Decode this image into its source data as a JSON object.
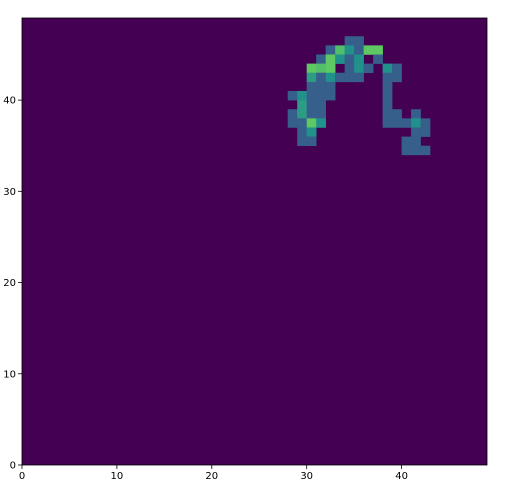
{
  "chart_data": {
    "type": "heatmap",
    "title": "",
    "xlabel": "",
    "ylabel": "",
    "grid_size": [
      49,
      49
    ],
    "xlim": [
      0,
      49
    ],
    "ylim": [
      0,
      49
    ],
    "origin": "lower",
    "x_ticks": [
      0,
      10,
      20,
      30,
      40
    ],
    "y_ticks": [
      0,
      10,
      20,
      30,
      40
    ],
    "grid": false,
    "colormap": "viridis",
    "background_value": 0,
    "value_range": [
      0,
      1
    ],
    "colors": {
      "low": "#440154",
      "mid_low": "#3b528b",
      "mid": "#21918c",
      "high": "#5ec962"
    },
    "cells": [
      {
        "x": 34,
        "y": 46,
        "v": 0.3
      },
      {
        "x": 35,
        "y": 46,
        "v": 0.3
      },
      {
        "x": 32,
        "y": 45,
        "v": 0.3
      },
      {
        "x": 33,
        "y": 45,
        "v": 0.7
      },
      {
        "x": 34,
        "y": 45,
        "v": 0.5
      },
      {
        "x": 35,
        "y": 45,
        "v": 0.3
      },
      {
        "x": 36,
        "y": 45,
        "v": 0.75
      },
      {
        "x": 37,
        "y": 45,
        "v": 0.75
      },
      {
        "x": 31,
        "y": 44,
        "v": 0.3
      },
      {
        "x": 32,
        "y": 44,
        "v": 0.75
      },
      {
        "x": 33,
        "y": 44,
        "v": 0.5
      },
      {
        "x": 34,
        "y": 44,
        "v": 0.3
      },
      {
        "x": 35,
        "y": 44,
        "v": 0.5
      },
      {
        "x": 37,
        "y": 44,
        "v": 0.3
      },
      {
        "x": 30,
        "y": 43,
        "v": 0.75
      },
      {
        "x": 31,
        "y": 43,
        "v": 0.7
      },
      {
        "x": 32,
        "y": 43,
        "v": 0.75
      },
      {
        "x": 34,
        "y": 43,
        "v": 0.3
      },
      {
        "x": 35,
        "y": 43,
        "v": 0.5
      },
      {
        "x": 36,
        "y": 43,
        "v": 0.3
      },
      {
        "x": 38,
        "y": 43,
        "v": 0.5
      },
      {
        "x": 39,
        "y": 43,
        "v": 0.3
      },
      {
        "x": 30,
        "y": 42,
        "v": 0.55
      },
      {
        "x": 31,
        "y": 42,
        "v": 0.3
      },
      {
        "x": 32,
        "y": 42,
        "v": 0.5
      },
      {
        "x": 33,
        "y": 42,
        "v": 0.3
      },
      {
        "x": 34,
        "y": 42,
        "v": 0.3
      },
      {
        "x": 35,
        "y": 42,
        "v": 0.3
      },
      {
        "x": 38,
        "y": 42,
        "v": 0.3
      },
      {
        "x": 39,
        "y": 42,
        "v": 0.3
      },
      {
        "x": 30,
        "y": 41,
        "v": 0.3
      },
      {
        "x": 31,
        "y": 41,
        "v": 0.3
      },
      {
        "x": 32,
        "y": 41,
        "v": 0.3
      },
      {
        "x": 38,
        "y": 41,
        "v": 0.3
      },
      {
        "x": 28,
        "y": 40,
        "v": 0.3
      },
      {
        "x": 29,
        "y": 40,
        "v": 0.5
      },
      {
        "x": 30,
        "y": 40,
        "v": 0.3
      },
      {
        "x": 31,
        "y": 40,
        "v": 0.3
      },
      {
        "x": 32,
        "y": 40,
        "v": 0.3
      },
      {
        "x": 38,
        "y": 40,
        "v": 0.3
      },
      {
        "x": 29,
        "y": 39,
        "v": 0.55
      },
      {
        "x": 30,
        "y": 39,
        "v": 0.3
      },
      {
        "x": 31,
        "y": 39,
        "v": 0.3
      },
      {
        "x": 38,
        "y": 39,
        "v": 0.3
      },
      {
        "x": 28,
        "y": 38,
        "v": 0.3
      },
      {
        "x": 29,
        "y": 38,
        "v": 0.55
      },
      {
        "x": 30,
        "y": 38,
        "v": 0.3
      },
      {
        "x": 31,
        "y": 38,
        "v": 0.3
      },
      {
        "x": 38,
        "y": 38,
        "v": 0.3
      },
      {
        "x": 39,
        "y": 38,
        "v": 0.3
      },
      {
        "x": 41,
        "y": 38,
        "v": 0.3
      },
      {
        "x": 28,
        "y": 37,
        "v": 0.3
      },
      {
        "x": 29,
        "y": 37,
        "v": 0.3
      },
      {
        "x": 30,
        "y": 37,
        "v": 0.75
      },
      {
        "x": 31,
        "y": 37,
        "v": 0.5
      },
      {
        "x": 38,
        "y": 37,
        "v": 0.3
      },
      {
        "x": 39,
        "y": 37,
        "v": 0.3
      },
      {
        "x": 40,
        "y": 37,
        "v": 0.3
      },
      {
        "x": 41,
        "y": 37,
        "v": 0.5
      },
      {
        "x": 42,
        "y": 37,
        "v": 0.3
      },
      {
        "x": 29,
        "y": 36,
        "v": 0.3
      },
      {
        "x": 30,
        "y": 36,
        "v": 0.5
      },
      {
        "x": 41,
        "y": 36,
        "v": 0.3
      },
      {
        "x": 42,
        "y": 36,
        "v": 0.3
      },
      {
        "x": 29,
        "y": 35,
        "v": 0.3
      },
      {
        "x": 30,
        "y": 35,
        "v": 0.3
      },
      {
        "x": 40,
        "y": 35,
        "v": 0.3
      },
      {
        "x": 41,
        "y": 35,
        "v": 0.3
      },
      {
        "x": 40,
        "y": 34,
        "v": 0.3
      },
      {
        "x": 41,
        "y": 34,
        "v": 0.3
      },
      {
        "x": 42,
        "y": 34,
        "v": 0.3
      }
    ]
  }
}
